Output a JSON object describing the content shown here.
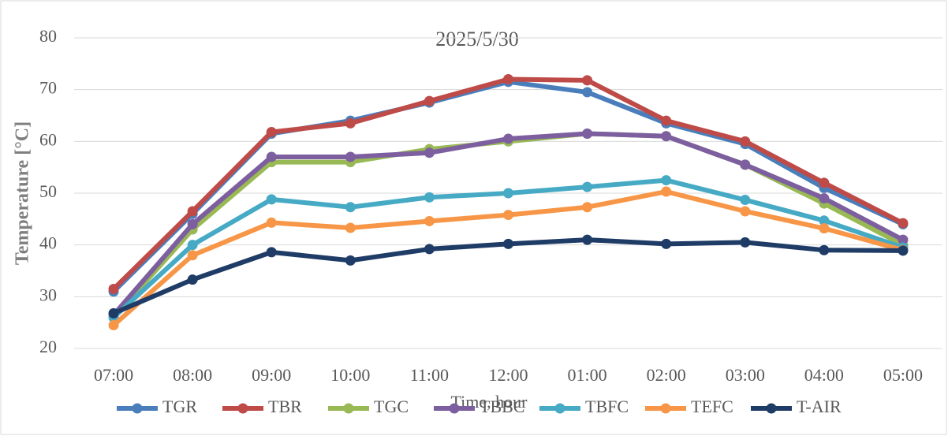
{
  "chart_data": {
    "type": "line",
    "title": "2025/5/30",
    "x_label": "Time, hour",
    "y_label": "Temperature  [°C]",
    "categories": [
      "07:00",
      "08:00",
      "09:00",
      "10:00",
      "11:00",
      "12:00",
      "01:00",
      "02:00",
      "03:00",
      "04:00",
      "05:00"
    ],
    "series": [
      {
        "name": "TGR",
        "color": "#4a7ebb",
        "values": [
          31,
          46,
          61.5,
          64,
          67.5,
          71.5,
          69.5,
          63.5,
          59.5,
          51,
          44
        ]
      },
      {
        "name": "TBR",
        "color": "#be4b48",
        "values": [
          31.5,
          46.5,
          61.8,
          63.5,
          67.8,
          72,
          71.8,
          64,
          60,
          52,
          44.2
        ]
      },
      {
        "name": "TGC",
        "color": "#98b954",
        "values": [
          26,
          43,
          56,
          56,
          58.5,
          60,
          61.5,
          61,
          55.5,
          48,
          40
        ]
      },
      {
        "name": "TBBC",
        "color": "#7d5fa0",
        "values": [
          26.5,
          44,
          57,
          57,
          57.8,
          60.5,
          61.5,
          61,
          55.5,
          49,
          41
        ]
      },
      {
        "name": "TBFC",
        "color": "#46aac5",
        "values": [
          26,
          40,
          48.8,
          47.3,
          49.2,
          50,
          51.2,
          52.5,
          48.7,
          44.7,
          39.5
        ]
      },
      {
        "name": "TEFC",
        "color": "#f79646",
        "values": [
          24.5,
          38,
          44.3,
          43.3,
          44.6,
          45.8,
          47.3,
          50.3,
          46.5,
          43.2,
          39
        ]
      },
      {
        "name": "T-AIR",
        "color": "#1f3c66",
        "values": [
          26.8,
          33.3,
          38.6,
          37,
          39.2,
          40.2,
          41,
          40.2,
          40.5,
          39,
          38.9
        ]
      }
    ],
    "ylim": [
      20,
      80
    ],
    "yticks": [
      20,
      30,
      40,
      50,
      60,
      70,
      80
    ],
    "grid": true,
    "legend": "bottom"
  }
}
